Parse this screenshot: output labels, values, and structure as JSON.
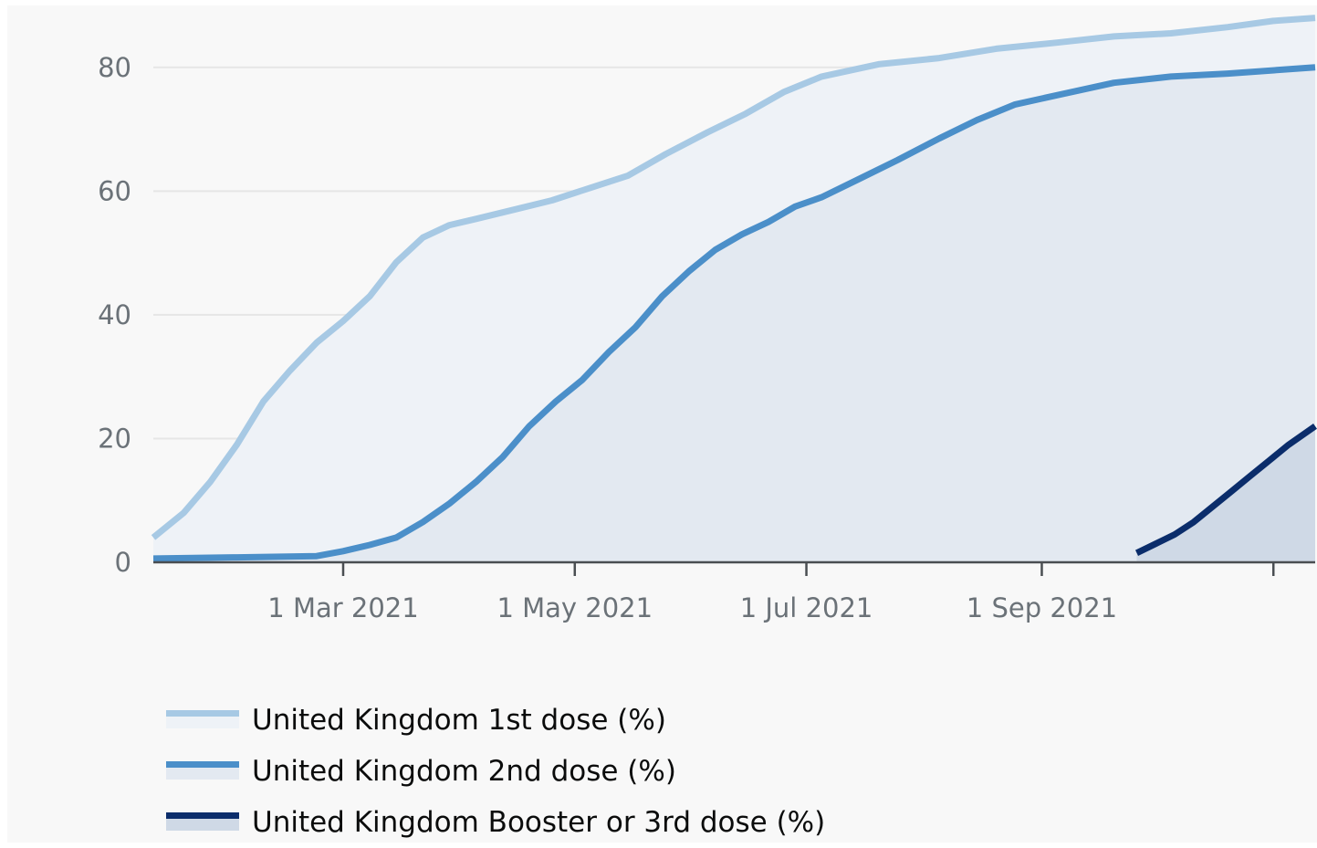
{
  "chart_data": {
    "type": "area",
    "x_start": "2021-01-10",
    "x_end": "2021-11-12",
    "ylim": [
      0,
      90
    ],
    "y_ticks": [
      0,
      20,
      40,
      60,
      80
    ],
    "x_ticks": [
      {
        "date": "2021-03-01",
        "label": "1 Mar 2021"
      },
      {
        "date": "2021-05-01",
        "label": "1 May 2021"
      },
      {
        "date": "2021-07-01",
        "label": "1 Jul 2021"
      },
      {
        "date": "2021-09-01",
        "label": "1 Sep 2021"
      },
      {
        "date": "2021-11-01",
        "label": ""
      }
    ],
    "grid": true,
    "legend_position": "bottom-left",
    "series": [
      {
        "name": "United Kingdom 1st dose (%)",
        "color": "#a7c9e4",
        "fill": "#eef2f7",
        "points": [
          [
            "2021-01-10",
            4
          ],
          [
            "2021-01-18",
            8
          ],
          [
            "2021-01-25",
            13
          ],
          [
            "2021-02-01",
            19
          ],
          [
            "2021-02-08",
            26
          ],
          [
            "2021-02-15",
            31
          ],
          [
            "2021-02-22",
            35.5
          ],
          [
            "2021-03-01",
            39
          ],
          [
            "2021-03-08",
            43
          ],
          [
            "2021-03-15",
            48.5
          ],
          [
            "2021-03-22",
            52.5
          ],
          [
            "2021-03-29",
            54.5
          ],
          [
            "2021-04-05",
            55.5
          ],
          [
            "2021-04-15",
            57
          ],
          [
            "2021-04-25",
            58.5
          ],
          [
            "2021-05-05",
            60.5
          ],
          [
            "2021-05-15",
            62.5
          ],
          [
            "2021-05-25",
            66
          ],
          [
            "2021-06-05",
            69.5
          ],
          [
            "2021-06-15",
            72.5
          ],
          [
            "2021-06-25",
            76
          ],
          [
            "2021-07-05",
            78.5
          ],
          [
            "2021-07-20",
            80.5
          ],
          [
            "2021-08-05",
            81.5
          ],
          [
            "2021-08-20",
            83
          ],
          [
            "2021-09-05",
            84
          ],
          [
            "2021-09-20",
            85
          ],
          [
            "2021-10-05",
            85.5
          ],
          [
            "2021-10-20",
            86.5
          ],
          [
            "2021-11-01",
            87.5
          ],
          [
            "2021-11-12",
            88
          ]
        ]
      },
      {
        "name": "United Kingdom 2nd dose (%)",
        "color": "#4b8fc9",
        "fill": "#e3e9f1",
        "points": [
          [
            "2021-01-10",
            0.6
          ],
          [
            "2021-02-01",
            0.8
          ],
          [
            "2021-02-22",
            1
          ],
          [
            "2021-03-01",
            1.8
          ],
          [
            "2021-03-08",
            2.8
          ],
          [
            "2021-03-15",
            4
          ],
          [
            "2021-03-22",
            6.5
          ],
          [
            "2021-03-29",
            9.5
          ],
          [
            "2021-04-05",
            13
          ],
          [
            "2021-04-12",
            17
          ],
          [
            "2021-04-19",
            22
          ],
          [
            "2021-04-26",
            26
          ],
          [
            "2021-05-03",
            29.5
          ],
          [
            "2021-05-10",
            34
          ],
          [
            "2021-05-17",
            38
          ],
          [
            "2021-05-24",
            43
          ],
          [
            "2021-05-31",
            47
          ],
          [
            "2021-06-07",
            50.5
          ],
          [
            "2021-06-14",
            53
          ],
          [
            "2021-06-21",
            55
          ],
          [
            "2021-06-28",
            57.5
          ],
          [
            "2021-07-05",
            59
          ],
          [
            "2021-07-15",
            62
          ],
          [
            "2021-07-25",
            65
          ],
          [
            "2021-08-05",
            68.5
          ],
          [
            "2021-08-15",
            71.5
          ],
          [
            "2021-08-25",
            74
          ],
          [
            "2021-09-05",
            75.5
          ],
          [
            "2021-09-20",
            77.5
          ],
          [
            "2021-10-05",
            78.5
          ],
          [
            "2021-10-20",
            79
          ],
          [
            "2021-11-12",
            80
          ]
        ]
      },
      {
        "name": "United Kingdom Booster or 3rd dose (%)",
        "color": "#0b2d6b",
        "fill": "#cfd9e6",
        "points": [
          [
            "2021-09-26",
            1.5
          ],
          [
            "2021-10-01",
            3
          ],
          [
            "2021-10-06",
            4.5
          ],
          [
            "2021-10-11",
            6.5
          ],
          [
            "2021-10-16",
            9
          ],
          [
            "2021-10-21",
            11.5
          ],
          [
            "2021-10-26",
            14
          ],
          [
            "2021-10-31",
            16.5
          ],
          [
            "2021-11-05",
            19
          ],
          [
            "2021-11-12",
            22
          ]
        ]
      }
    ]
  }
}
